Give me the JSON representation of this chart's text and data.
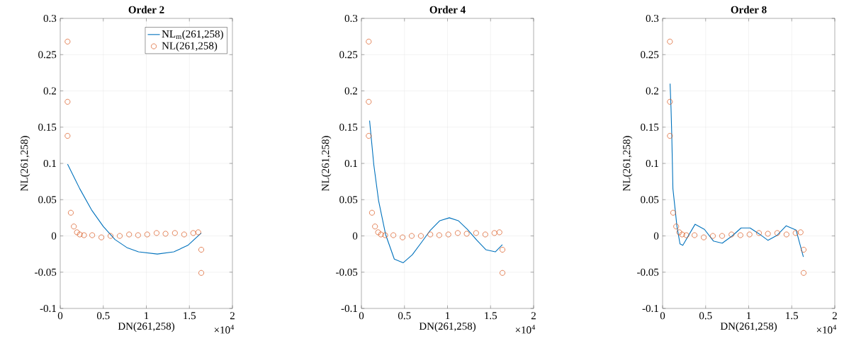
{
  "chart_data": [
    {
      "type": "line",
      "title": "Order 2",
      "xlabel": "DN(261,258)",
      "ylabel": "NL(261,258)",
      "xlim": [
        0,
        2
      ],
      "ylim": [
        -0.1,
        0.3
      ],
      "xticks": [
        0,
        0.5,
        1,
        1.5,
        2
      ],
      "yticks": [
        -0.1,
        -0.05,
        0,
        0.05,
        0.1,
        0.15,
        0.2,
        0.25,
        0.3
      ],
      "grid": true,
      "legend": "top right",
      "annotations": [
        "×10$^{4}$"
      ],
      "series": [
        {
          "name": "NL$_{m}$(261,258)",
          "color": "#0072bd",
          "x": [
            0.085,
            0.227,
            0.363,
            0.5,
            0.636,
            0.773,
            0.909,
            1.128,
            1.319,
            1.482,
            1.638
          ],
          "values": [
            0.099,
            0.065,
            0.036,
            0.013,
            -0.005,
            -0.016,
            -0.022,
            -0.025,
            -0.022,
            -0.013,
            0.004
          ]
        },
        {
          "name": "NL(261,258)",
          "type": "scatter",
          "marker": "circle",
          "color": "#d95319",
          "x": [
            0.085,
            0.085,
            0.085,
            0.123,
            0.158,
            0.194,
            0.227,
            0.276,
            0.371,
            0.478,
            0.584,
            0.691,
            0.8,
            0.904,
            1.01,
            1.119,
            1.223,
            1.332,
            1.439,
            1.545,
            1.603,
            1.638,
            1.638
          ],
          "values": [
            0.268,
            0.185,
            0.138,
            0.032,
            0.013,
            0.005,
            0.002,
            0.001,
            0.001,
            -0.002,
            0.0,
            0.0,
            0.002,
            0.001,
            0.002,
            0.004,
            0.003,
            0.004,
            0.002,
            0.004,
            0.005,
            -0.019,
            -0.051
          ]
        }
      ]
    },
    {
      "type": "line",
      "title": "Order 4",
      "xlabel": "DN(261,258)",
      "ylabel": "NL(261,258)",
      "xlim": [
        0,
        2
      ],
      "ylim": [
        -0.1,
        0.3
      ],
      "xticks": [
        0,
        0.5,
        1,
        1.5,
        2
      ],
      "yticks": [
        -0.1,
        -0.05,
        0,
        0.05,
        0.1,
        0.15,
        0.2,
        0.25,
        0.3
      ],
      "grid": true,
      "annotations": [
        "×10$^{4}$"
      ],
      "series": [
        {
          "color": "#0072bd",
          "x": [
            0.095,
            0.144,
            0.199,
            0.281,
            0.382,
            0.486,
            0.591,
            0.697,
            0.802,
            0.911,
            1.021,
            1.125,
            1.232,
            1.341,
            1.445,
            1.555,
            1.637
          ],
          "values": [
            0.159,
            0.098,
            0.049,
            0.002,
            -0.032,
            -0.037,
            -0.026,
            -0.009,
            0.008,
            0.021,
            0.025,
            0.021,
            0.009,
            -0.006,
            -0.019,
            -0.022,
            -0.012
          ]
        },
        {
          "type": "scatter",
          "marker": "circle",
          "color": "#d95319",
          "x": [
            0.085,
            0.085,
            0.085,
            0.123,
            0.158,
            0.194,
            0.227,
            0.276,
            0.371,
            0.478,
            0.584,
            0.691,
            0.8,
            0.904,
            1.01,
            1.119,
            1.223,
            1.332,
            1.439,
            1.545,
            1.603,
            1.638,
            1.638
          ],
          "values": [
            0.268,
            0.185,
            0.138,
            0.032,
            0.013,
            0.005,
            0.002,
            0.001,
            0.001,
            -0.002,
            0.0,
            0.0,
            0.002,
            0.001,
            0.002,
            0.004,
            0.003,
            0.004,
            0.002,
            0.004,
            0.005,
            -0.019,
            -0.051
          ]
        }
      ]
    },
    {
      "type": "line",
      "title": "Order 8",
      "xlabel": "DN(261,258)",
      "ylabel": "NL(261,258)",
      "xlim": [
        0,
        2
      ],
      "ylim": [
        -0.1,
        0.3
      ],
      "xticks": [
        0,
        0.5,
        1,
        1.5,
        2
      ],
      "yticks": [
        -0.1,
        -0.05,
        0,
        0.05,
        0.1,
        0.15,
        0.2,
        0.25,
        0.3
      ],
      "grid": true,
      "annotations": [
        "×10$^{4}$"
      ],
      "series": [
        {
          "color": "#0072bd",
          "x": [
            0.087,
            0.098,
            0.107,
            0.12,
            0.167,
            0.202,
            0.235,
            0.377,
            0.486,
            0.59,
            0.693,
            0.808,
            0.912,
            1.016,
            1.119,
            1.223,
            1.332,
            1.436,
            1.551,
            1.635
          ],
          "values": [
            0.21,
            0.176,
            0.137,
            0.065,
            0.013,
            -0.011,
            -0.013,
            0.016,
            0.009,
            -0.007,
            -0.01,
            0.0,
            0.011,
            0.011,
            0.003,
            -0.006,
            0.001,
            0.014,
            0.008,
            -0.029
          ]
        },
        {
          "type": "scatter",
          "marker": "circle",
          "color": "#d95319",
          "x": [
            0.085,
            0.085,
            0.085,
            0.123,
            0.158,
            0.194,
            0.227,
            0.276,
            0.371,
            0.478,
            0.584,
            0.691,
            0.8,
            0.904,
            1.01,
            1.119,
            1.223,
            1.332,
            1.439,
            1.545,
            1.603,
            1.638,
            1.638
          ],
          "values": [
            0.268,
            0.185,
            0.138,
            0.032,
            0.013,
            0.005,
            0.002,
            0.001,
            0.001,
            -0.002,
            0.0,
            0.0,
            0.002,
            0.001,
            0.002,
            0.004,
            0.003,
            0.004,
            0.002,
            0.004,
            0.005,
            -0.019,
            -0.051
          ]
        }
      ]
    }
  ]
}
